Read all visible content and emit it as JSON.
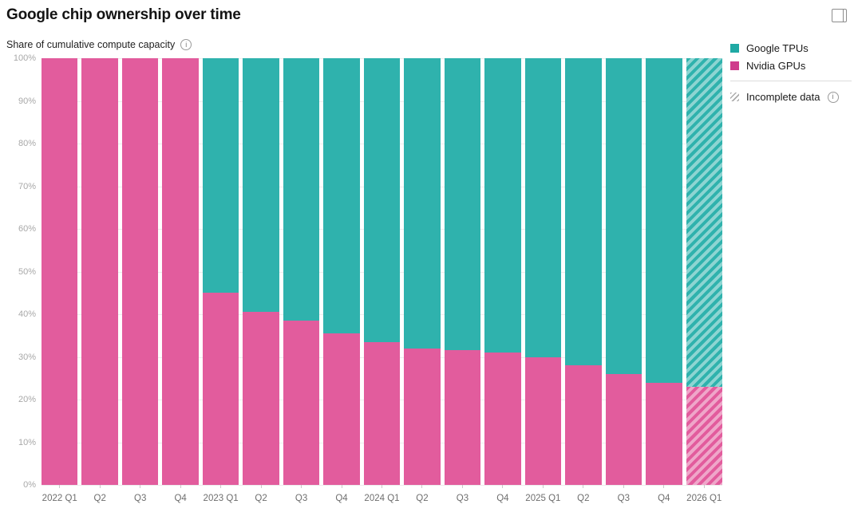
{
  "header": {
    "title": "Google chip ownership over time",
    "subtitle": "Share of cumulative compute capacity"
  },
  "legend": {
    "items": [
      {
        "label": "Google TPUs",
        "color": "#1fa9a4"
      },
      {
        "label": "Nvidia GPUs",
        "color": "#cf3c8c"
      }
    ],
    "incomplete_label": "Incomplete data"
  },
  "colors": {
    "tpu_bar": "#2fb2ad",
    "gpu_bar": "#e25c9d",
    "gridline": "#ededed"
  },
  "chart_data": {
    "type": "bar",
    "stacked": true,
    "unit": "%",
    "title": "Google chip ownership over time",
    "ylabel": "Share of cumulative compute capacity",
    "xlabel": "",
    "ylim": [
      0,
      100
    ],
    "grid": true,
    "legend_position": "top-right",
    "y_tick_labels": [
      "100%",
      "90%",
      "80%",
      "70%",
      "60%",
      "50%",
      "40%",
      "30%",
      "20%",
      "10%",
      "0%"
    ],
    "categories": [
      "2022 Q1",
      "Q2",
      "Q3",
      "Q4",
      "2023 Q1",
      "Q2",
      "Q3",
      "Q4",
      "2024 Q1",
      "Q2",
      "Q3",
      "Q4",
      "2025 Q1",
      "Q2",
      "Q3",
      "Q4",
      "2026 Q1"
    ],
    "series": [
      {
        "name": "Google TPUs",
        "values": [
          0,
          0,
          0,
          0,
          55,
          59.5,
          61.5,
          64.5,
          66.5,
          68,
          68.5,
          69,
          70,
          72,
          74,
          76,
          77
        ]
      },
      {
        "name": "Nvidia GPUs",
        "values": [
          100,
          100,
          100,
          100,
          45,
          40.5,
          38.5,
          35.5,
          33.5,
          32,
          31.5,
          31,
          30,
          28,
          26,
          24,
          23
        ]
      }
    ],
    "incomplete_categories": [
      "2026 Q1"
    ]
  }
}
